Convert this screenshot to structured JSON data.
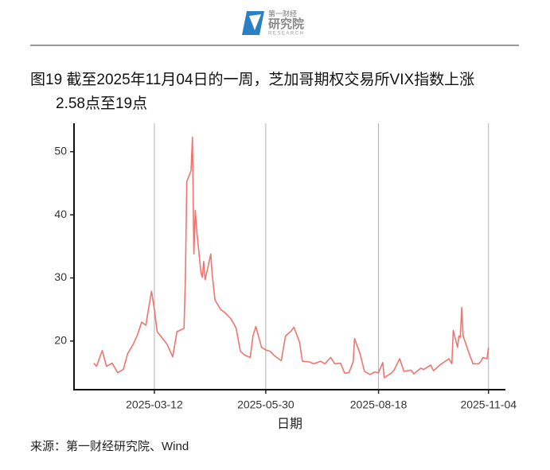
{
  "header": {
    "brand": "第一财经",
    "name": "研究院",
    "tagline": "RESEARCH"
  },
  "chart_data": {
    "type": "line",
    "title": [
      "图19  截至2025年11月04日的一周，芝加哥期权交易所VIX指数上涨",
      "2.58点至19点"
    ],
    "x_label": "日期",
    "source": "来源：第一财经研究院、Wind",
    "xlim": [
      "2025-01-14",
      "2025-11-16"
    ],
    "xticks": [
      "2025-03-12",
      "2025-05-30",
      "2025-08-18",
      "2025-11-04"
    ],
    "ylim": [
      12.3,
      54.5
    ],
    "yticks": [
      20,
      30,
      40,
      50
    ],
    "grid": "x",
    "series": [
      {
        "name": "VIX",
        "color": "#f07470",
        "x": [
          "2025-01-28",
          "2025-01-30",
          "2025-02-03",
          "2025-02-06",
          "2025-02-10",
          "2025-02-14",
          "2025-02-18",
          "2025-02-21",
          "2025-02-25",
          "2025-02-28",
          "2025-03-03",
          "2025-03-06",
          "2025-03-07",
          "2025-03-10",
          "2025-03-12",
          "2025-03-14",
          "2025-03-21",
          "2025-03-25",
          "2025-03-28",
          "2025-03-31",
          "2025-04-02",
          "2025-04-03",
          "2025-04-04",
          "2025-04-07",
          "2025-04-08",
          "2025-04-09",
          "2025-04-10",
          "2025-04-11",
          "2025-04-14",
          "2025-04-15",
          "2025-04-16",
          "2025-04-17",
          "2025-04-21",
          "2025-04-22",
          "2025-04-24",
          "2025-04-28",
          "2025-05-01",
          "2025-05-05",
          "2025-05-08",
          "2025-05-09",
          "2025-05-12",
          "2025-05-15",
          "2025-05-19",
          "2025-05-21",
          "2025-05-23",
          "2025-05-27",
          "2025-05-30",
          "2025-06-02",
          "2025-06-05",
          "2025-06-10",
          "2025-06-13",
          "2025-06-17",
          "2025-06-19",
          "2025-06-23",
          "2025-06-25",
          "2025-06-30",
          "2025-07-03",
          "2025-07-08",
          "2025-07-11",
          "2025-07-15",
          "2025-07-18",
          "2025-07-22",
          "2025-07-25",
          "2025-07-28",
          "2025-07-31",
          "2025-08-01",
          "2025-08-05",
          "2025-08-08",
          "2025-08-12",
          "2025-08-15",
          "2025-08-18",
          "2025-08-21",
          "2025-08-22",
          "2025-08-27",
          "2025-08-29",
          "2025-09-02",
          "2025-09-05",
          "2025-09-10",
          "2025-09-12",
          "2025-09-17",
          "2025-09-19",
          "2025-09-24",
          "2025-09-26",
          "2025-10-01",
          "2025-10-03",
          "2025-10-07",
          "2025-10-09",
          "2025-10-10",
          "2025-10-13",
          "2025-10-14",
          "2025-10-15",
          "2025-10-16",
          "2025-10-17",
          "2025-10-21",
          "2025-10-24",
          "2025-10-28",
          "2025-10-30",
          "2025-10-31",
          "2025-11-03",
          "2025-11-04"
        ],
        "values": [
          16.5,
          16,
          18.5,
          16,
          16.5,
          15,
          15.5,
          18,
          19.5,
          21,
          23,
          22.5,
          24,
          27.9,
          25,
          21.5,
          19.5,
          17.5,
          21.5,
          21.8,
          22,
          30,
          45.3,
          47,
          52.3,
          33.8,
          40.7,
          37.6,
          30.9,
          30.1,
          32.6,
          29.7,
          33.8,
          30.6,
          26.5,
          25,
          24.5,
          23.6,
          22.5,
          22,
          18.4,
          17.8,
          17.4,
          20.9,
          22.3,
          19,
          18.6,
          18.4,
          17.7,
          16.9,
          20.8,
          21.6,
          22.2,
          19.8,
          16.8,
          16.7,
          16.4,
          16.8,
          16.4,
          17.4,
          16.4,
          16.5,
          14.9,
          15,
          16.7,
          20.4,
          17.9,
          15.2,
          14.7,
          15.1,
          15,
          16.6,
          14.2,
          14.9,
          15.4,
          17.2,
          15.2,
          15.4,
          14.8,
          15.7,
          15.5,
          16.2,
          15.3,
          16.3,
          16.6,
          17.2,
          16.4,
          21.7,
          19,
          20.8,
          20.6,
          25.3,
          20.8,
          18.2,
          16.4,
          16.4,
          16.9,
          17.4,
          17.2,
          19
        ]
      }
    ]
  }
}
